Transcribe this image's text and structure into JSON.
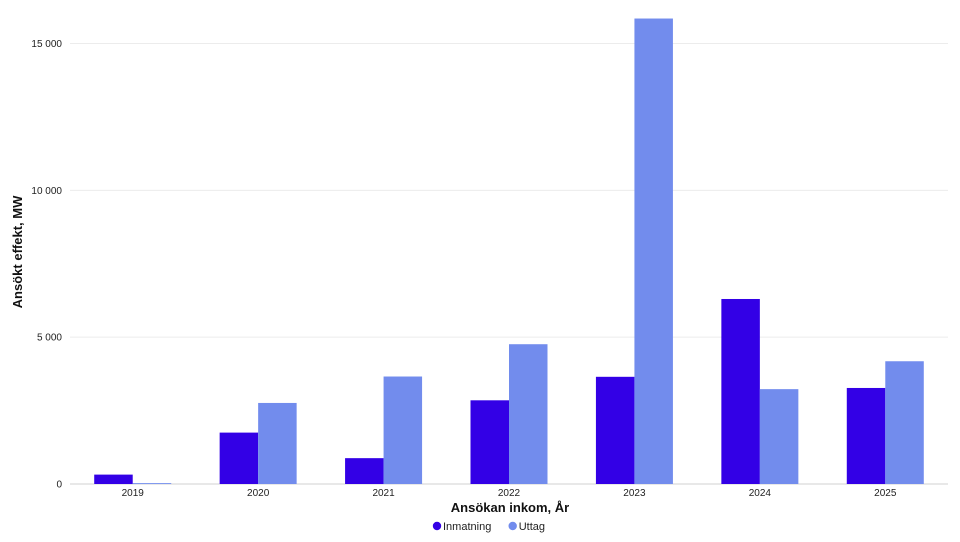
{
  "chart_data": {
    "type": "bar",
    "xlabel": "Ansökan inkom, År",
    "ylabel": "Ansökt effekt, MW",
    "categories": [
      "2019",
      "2020",
      "2021",
      "2022",
      "2023",
      "2024",
      "2025"
    ],
    "series": [
      {
        "name": "Inmatning",
        "color": "#3300e6",
        "values": [
          320,
          1750,
          880,
          2850,
          3650,
          6300,
          3270
        ]
      },
      {
        "name": "Uttag",
        "color": "#728ced",
        "values": [
          30,
          2760,
          3660,
          4760,
          15850,
          3230,
          4180
        ]
      }
    ],
    "ylim": [
      0,
      15800
    ],
    "yticks": [
      0,
      5000,
      10000,
      15000
    ],
    "ytick_labels": [
      "0",
      "5 000",
      "10 000",
      "15 000"
    ],
    "grid": true,
    "legend_position": "bottom"
  }
}
